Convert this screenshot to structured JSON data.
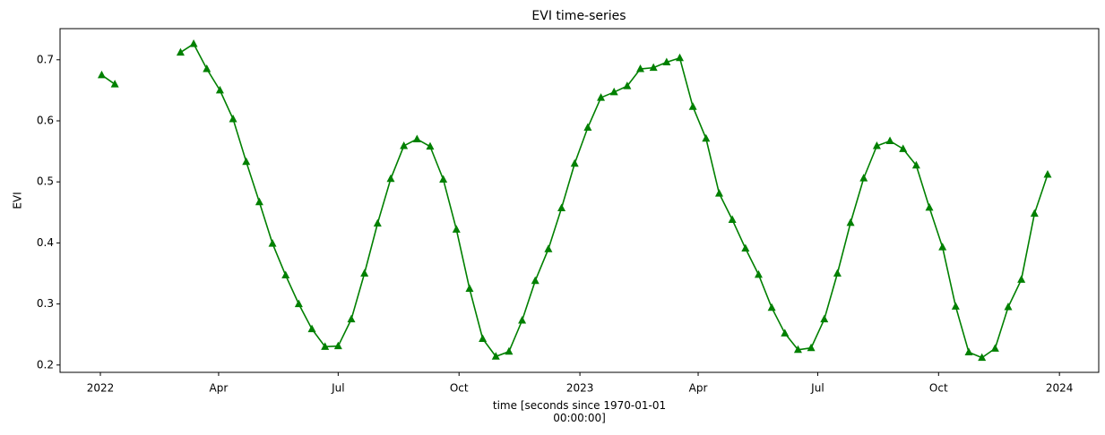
{
  "chart_data": {
    "type": "line",
    "title": "EVI time-series",
    "xlabel": "time [seconds since 1970-01-01\n00:00:00]",
    "ylabel": "EVI",
    "x": [
      1641081600,
      1641945600,
      1642809600,
      1643673600,
      1644537600,
      1645401600,
      1646265600,
      1647129600,
      1647993600,
      1648857600,
      1649721600,
      1650585600,
      1651449600,
      1652313600,
      1653177600,
      1654041600,
      1654905600,
      1655769600,
      1656633600,
      1657497600,
      1658361600,
      1659225600,
      1660089600,
      1660953600,
      1661817600,
      1662681600,
      1663545600,
      1664409600,
      1665273600,
      1666137600,
      1667001600,
      1667865600,
      1668729600,
      1669593600,
      1670457600,
      1671321600,
      1672185600,
      1673049600,
      1673913600,
      1674777600,
      1675641600,
      1676505600,
      1677369600,
      1678233600,
      1679097600,
      1679961600,
      1680825600,
      1681689600,
      1682553600,
      1683417600,
      1684281600,
      1685145600,
      1686009600,
      1686873600,
      1687737600,
      1688601600,
      1689465600,
      1690329600,
      1691193600,
      1692057600,
      1692921600,
      1693785600,
      1694649600,
      1695513600,
      1696377600,
      1697241600,
      1698105600,
      1698969600,
      1699833600,
      1700697600,
      1701561600,
      1702425600,
      1703289600
    ],
    "series": [
      {
        "name": "EVI",
        "color": "#008000",
        "values": [
          0.675,
          0.66,
          null,
          null,
          null,
          null,
          0.712,
          0.726,
          0.685,
          0.65,
          0.603,
          0.533,
          0.467,
          0.399,
          0.347,
          0.3,
          0.259,
          0.23,
          0.231,
          0.275,
          0.35,
          0.432,
          0.505,
          0.559,
          0.57,
          0.558,
          0.504,
          0.422,
          0.325,
          0.243,
          0.214,
          0.222,
          0.273,
          0.338,
          0.39,
          0.457,
          0.53,
          0.589,
          0.638,
          0.647,
          0.657,
          0.685,
          0.687,
          0.696,
          0.703,
          0.623,
          0.571,
          0.481,
          0.438,
          0.391,
          0.348,
          0.294,
          0.252,
          0.225,
          0.228,
          0.275,
          0.35,
          0.433,
          0.506,
          0.559,
          0.567,
          0.554,
          0.527,
          0.458,
          0.393,
          0.296,
          0.221,
          0.212,
          0.227,
          0.295,
          0.34,
          0.448,
          0.512
        ]
      }
    ],
    "xlim": [
      1638342720,
      1706650560
    ],
    "xticks": [
      {
        "value": 1640995200,
        "label": "2022"
      },
      {
        "value": 1648771200,
        "label": "Apr"
      },
      {
        "value": 1656633600,
        "label": "Jul"
      },
      {
        "value": 1664582400,
        "label": "Oct"
      },
      {
        "value": 1672531200,
        "label": "2023"
      },
      {
        "value": 1680307200,
        "label": "Apr"
      },
      {
        "value": 1688169600,
        "label": "Jul"
      },
      {
        "value": 1696118400,
        "label": "Oct"
      },
      {
        "value": 1704067200,
        "label": "2024"
      }
    ],
    "ylim": [
      0.188,
      0.751
    ],
    "yticks": [
      0.2,
      0.3,
      0.4,
      0.5,
      0.6,
      0.7
    ],
    "marker": "triangle"
  }
}
